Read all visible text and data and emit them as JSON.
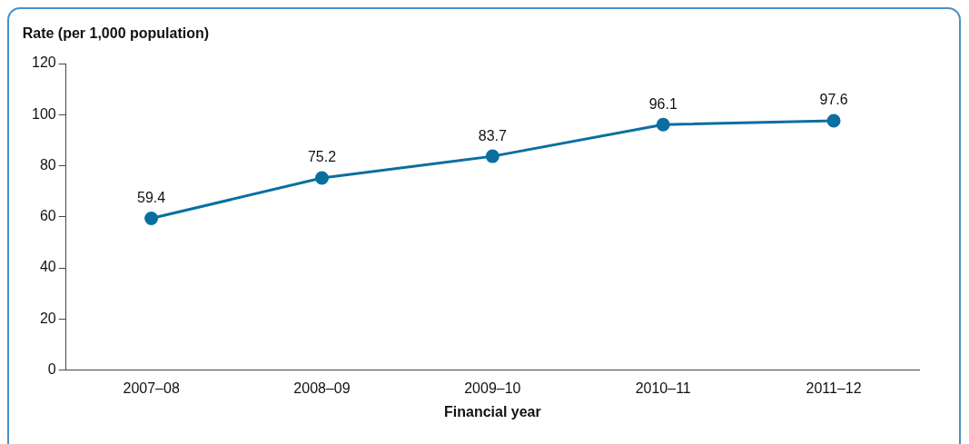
{
  "chart_data": {
    "type": "line",
    "xlabel": "Financial year",
    "ylabel": "Rate (per 1,000 population)",
    "categories": [
      "2007–08",
      "2008–09",
      "2009–10",
      "2010–11",
      "2011–12"
    ],
    "series": [
      {
        "color": "#0a6fa0",
        "values": [
          59.4,
          75.2,
          83.7,
          96.1,
          97.6
        ]
      }
    ],
    "ylim": [
      0,
      120
    ],
    "yticks": [
      0,
      20,
      40,
      60,
      80,
      100,
      120
    ],
    "grid": false,
    "legend": false,
    "marker": "circle",
    "line_style": "solid",
    "data_labels": true
  }
}
